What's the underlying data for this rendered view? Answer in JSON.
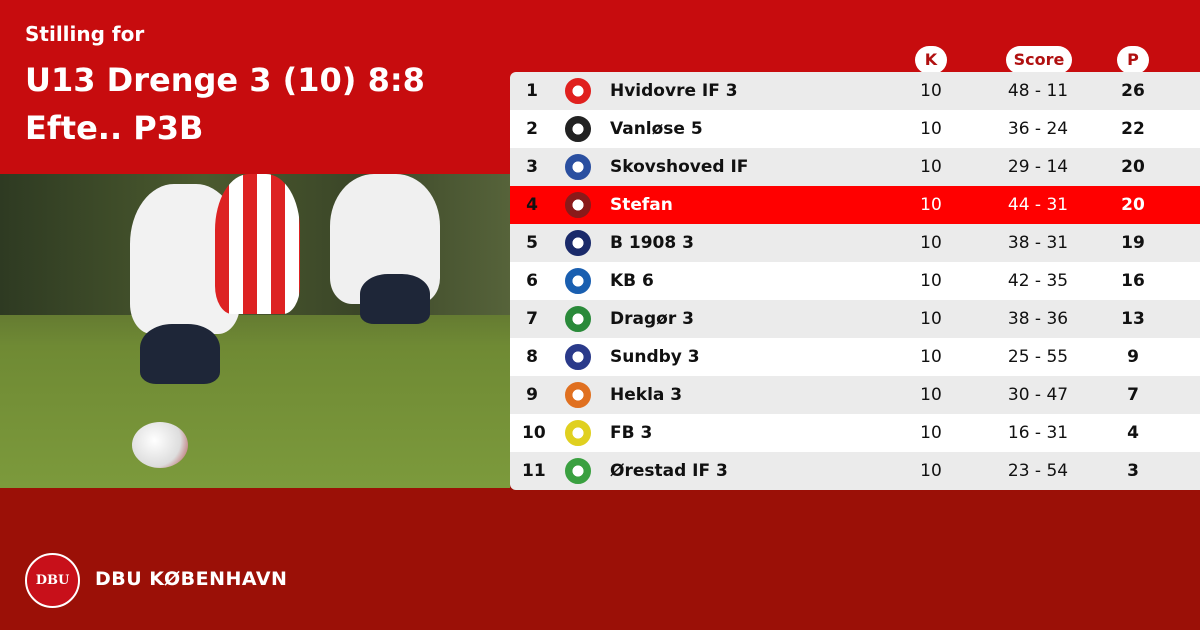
{
  "header": {
    "subtitle": "Stilling for",
    "title": "U13 Drenge 3 (10) 8:8 Efte.. P3B"
  },
  "columns": {
    "k": "K",
    "score": "Score",
    "p": "P"
  },
  "colors": {
    "top": "#c70c0e",
    "bottom": "#9b1007",
    "highlight": "#ff0000"
  },
  "rows": [
    {
      "rank": "1",
      "team": "Hvidovre IF 3",
      "k": "10",
      "score": "48 - 11",
      "p": "26",
      "logo_color": "#e0201e"
    },
    {
      "rank": "2",
      "team": "Vanløse 5",
      "k": "10",
      "score": "36 - 24",
      "p": "22",
      "logo_color": "#222222"
    },
    {
      "rank": "3",
      "team": "Skovshoved IF",
      "k": "10",
      "score": "29 - 14",
      "p": "20",
      "logo_color": "#2a4fa0"
    },
    {
      "rank": "4",
      "team": "Stefan",
      "k": "10",
      "score": "44 - 31",
      "p": "20",
      "logo_color": "#8a1a1a",
      "highlighted": true
    },
    {
      "rank": "5",
      "team": "B 1908 3",
      "k": "10",
      "score": "38 - 31",
      "p": "19",
      "logo_color": "#1a2a6a"
    },
    {
      "rank": "6",
      "team": "KB 6",
      "k": "10",
      "score": "42 - 35",
      "p": "16",
      "logo_color": "#1a5fb0"
    },
    {
      "rank": "7",
      "team": "Dragør 3",
      "k": "10",
      "score": "38 - 36",
      "p": "13",
      "logo_color": "#2a8a3a"
    },
    {
      "rank": "8",
      "team": "Sundby 3",
      "k": "10",
      "score": "25 - 55",
      "p": "9",
      "logo_color": "#2a3a8a"
    },
    {
      "rank": "9",
      "team": "Hekla 3",
      "k": "10",
      "score": "30 - 47",
      "p": "7",
      "logo_color": "#e07020"
    },
    {
      "rank": "10",
      "team": "FB 3",
      "k": "10",
      "score": "16 - 31",
      "p": "4",
      "logo_color": "#e0d020"
    },
    {
      "rank": "11",
      "team": "Ørestad IF 3",
      "k": "10",
      "score": "23 - 54",
      "p": "3",
      "logo_color": "#3aa040"
    }
  ],
  "footer": {
    "brand": "DBU KØBENHAVN",
    "seal": "DBU"
  }
}
